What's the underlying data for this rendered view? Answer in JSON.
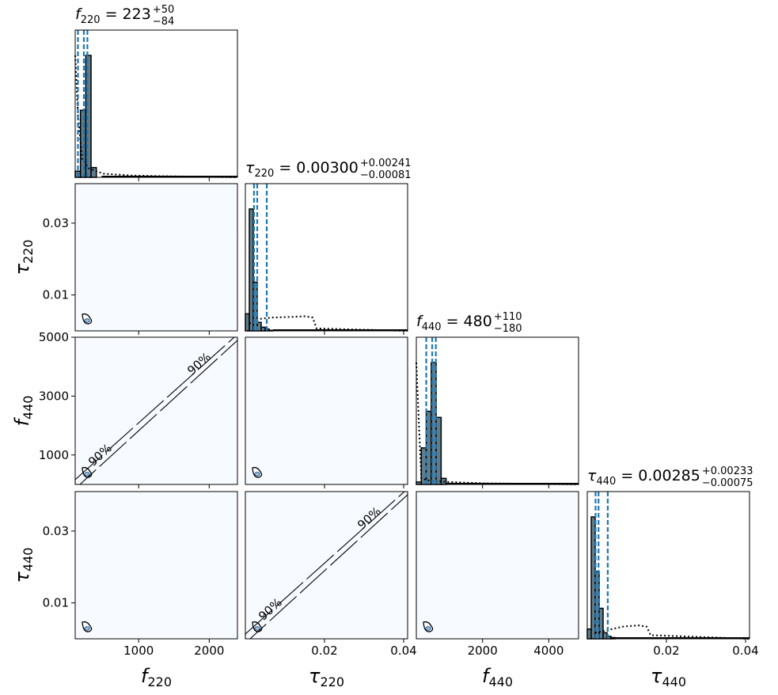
{
  "chart_data": {
    "type": "corner",
    "parameters": [
      {
        "key": "f220",
        "label_base": "f",
        "label_sub": "220",
        "range": [
          100,
          2400
        ],
        "ticks": [
          1000,
          2000
        ],
        "tick_labels": [
          "1000",
          "2000"
        ],
        "title": {
          "base": "f",
          "sub": "220",
          "median": "223",
          "plus": "+50",
          "minus": "−84"
        }
      },
      {
        "key": "tau220",
        "label_base": "τ",
        "label_sub": "220",
        "range": [
          0,
          0.041
        ],
        "ticks": [
          0.02,
          0.04
        ],
        "tick_labels": [
          "0.02",
          "0.04"
        ],
        "title": {
          "base": "τ",
          "sub": "220",
          "median": "0.00300",
          "plus": "+0.00241",
          "minus": "−0.00081"
        }
      },
      {
        "key": "f440",
        "label_base": "f",
        "label_sub": "440",
        "range": [
          0,
          4900
        ],
        "ticks": [
          2000,
          4000
        ],
        "tick_labels": [
          "2000",
          "4000"
        ],
        "title": {
          "base": "f",
          "sub": "440",
          "median": "480",
          "plus": "+110",
          "minus": "−180"
        }
      },
      {
        "key": "tau440",
        "label_base": "τ",
        "label_sub": "440",
        "range": [
          0,
          0.041
        ],
        "ticks": [
          0.02,
          0.04
        ],
        "tick_labels": [
          "0.02",
          "0.04"
        ],
        "title": {
          "base": "τ",
          "sub": "440",
          "median": "0.00285",
          "plus": "+0.00233",
          "minus": "−0.00075"
        }
      }
    ],
    "y_axes": {
      "tau220": {
        "range": [
          0,
          0.041
        ],
        "ticks": [
          0.01,
          0.03
        ],
        "tick_labels": [
          "0.01",
          "0.03"
        ]
      },
      "f440": {
        "range": [
          0,
          5000
        ],
        "ticks": [
          1000,
          3000,
          5000
        ],
        "tick_labels": [
          "1000",
          "3000",
          "5000"
        ]
      },
      "tau440": {
        "range": [
          0,
          0.041
        ],
        "ticks": [
          0.01,
          0.03
        ],
        "tick_labels": [
          "0.01",
          "0.03"
        ]
      }
    },
    "histograms": {
      "f220": {
        "edges": [
          100,
          175,
          250,
          325,
          400,
          475
        ],
        "posterior": [
          0.05,
          0.55,
          1.0,
          0.08,
          0.0
        ],
        "prior_dotted": [
          [
            100,
            1.0
          ],
          [
            140,
            0.5
          ],
          [
            200,
            0.15
          ],
          [
            300,
            0.07
          ],
          [
            500,
            0.03
          ],
          [
            900,
            0.015
          ],
          [
            1300,
            0.01
          ],
          [
            2400,
            0.0
          ]
        ],
        "quantiles": [
          139,
          223,
          273
        ]
      },
      "tau220": {
        "edges": [
          0,
          0.001,
          0.002,
          0.003,
          0.004,
          0.005,
          0.006,
          0.007
        ],
        "posterior": [
          0.14,
          1.0,
          0.4,
          0.07,
          0.03,
          0.015,
          0.005
        ],
        "prior_dotted": [
          [
            0.001,
            0.06
          ],
          [
            0.004,
            0.1
          ],
          [
            0.007,
            0.11
          ],
          [
            0.012,
            0.115
          ],
          [
            0.015,
            0.12
          ],
          [
            0.017,
            0.11
          ],
          [
            0.018,
            0.02
          ],
          [
            0.041,
            0.0
          ]
        ],
        "quantiles": [
          0.00219,
          0.003,
          0.00541
        ]
      },
      "f440": {
        "edges": [
          0,
          150,
          300,
          450,
          600,
          750,
          900
        ],
        "posterior": [
          0.02,
          0.3,
          0.6,
          1.0,
          0.55,
          0.05
        ],
        "prior_dotted": [
          [
            0,
            1.0
          ],
          [
            80,
            0.5
          ],
          [
            150,
            0.05
          ],
          [
            400,
            0.03
          ],
          [
            1000,
            0.02
          ],
          [
            2000,
            0.01
          ],
          [
            4900,
            0.0
          ]
        ],
        "quantiles": [
          300,
          480,
          590
        ]
      },
      "tau440": {
        "edges": [
          0,
          0.001,
          0.002,
          0.003,
          0.004,
          0.005,
          0.006,
          0.007
        ],
        "posterior": [
          0.08,
          1.0,
          0.55,
          0.25,
          0.05,
          0.02,
          0.01
        ],
        "prior_dotted": [
          [
            0.002,
            0.05
          ],
          [
            0.005,
            0.07
          ],
          [
            0.009,
            0.1
          ],
          [
            0.013,
            0.11
          ],
          [
            0.015,
            0.1
          ],
          [
            0.016,
            0.03
          ],
          [
            0.041,
            0.0
          ]
        ],
        "quantiles": [
          0.0021,
          0.00285,
          0.00518
        ]
      }
    },
    "contour_labels": {
      "diagonal": "90%"
    },
    "colors": {
      "panel_bg": "#f7fbff",
      "quantile": "#1f77b4",
      "hist_fill": "#607d8b",
      "contour_fill": "#9ecae1"
    }
  }
}
